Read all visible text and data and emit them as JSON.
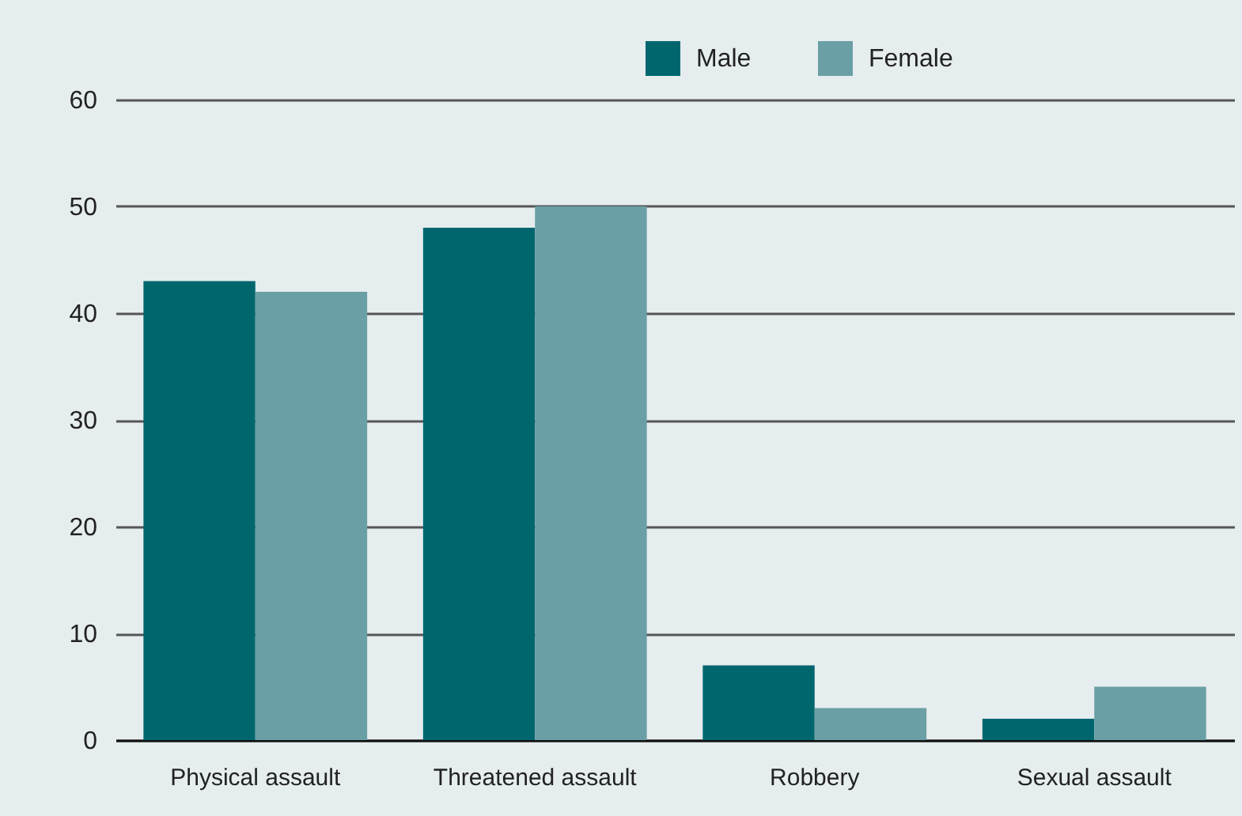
{
  "chart_data": {
    "type": "bar",
    "categories": [
      "Physical assault",
      "Threatened assault",
      "Robbery",
      "Sexual assault"
    ],
    "series": [
      {
        "name": "Male",
        "color": "#00666e",
        "values": [
          43,
          48,
          7,
          2
        ]
      },
      {
        "name": "Female",
        "color": "#6a9fa5",
        "values": [
          42,
          50,
          3,
          5
        ]
      }
    ],
    "ylim": [
      0,
      60
    ],
    "yticks": [
      0,
      10,
      20,
      30,
      40,
      50,
      60
    ],
    "grid": "y",
    "legend": "top"
  }
}
